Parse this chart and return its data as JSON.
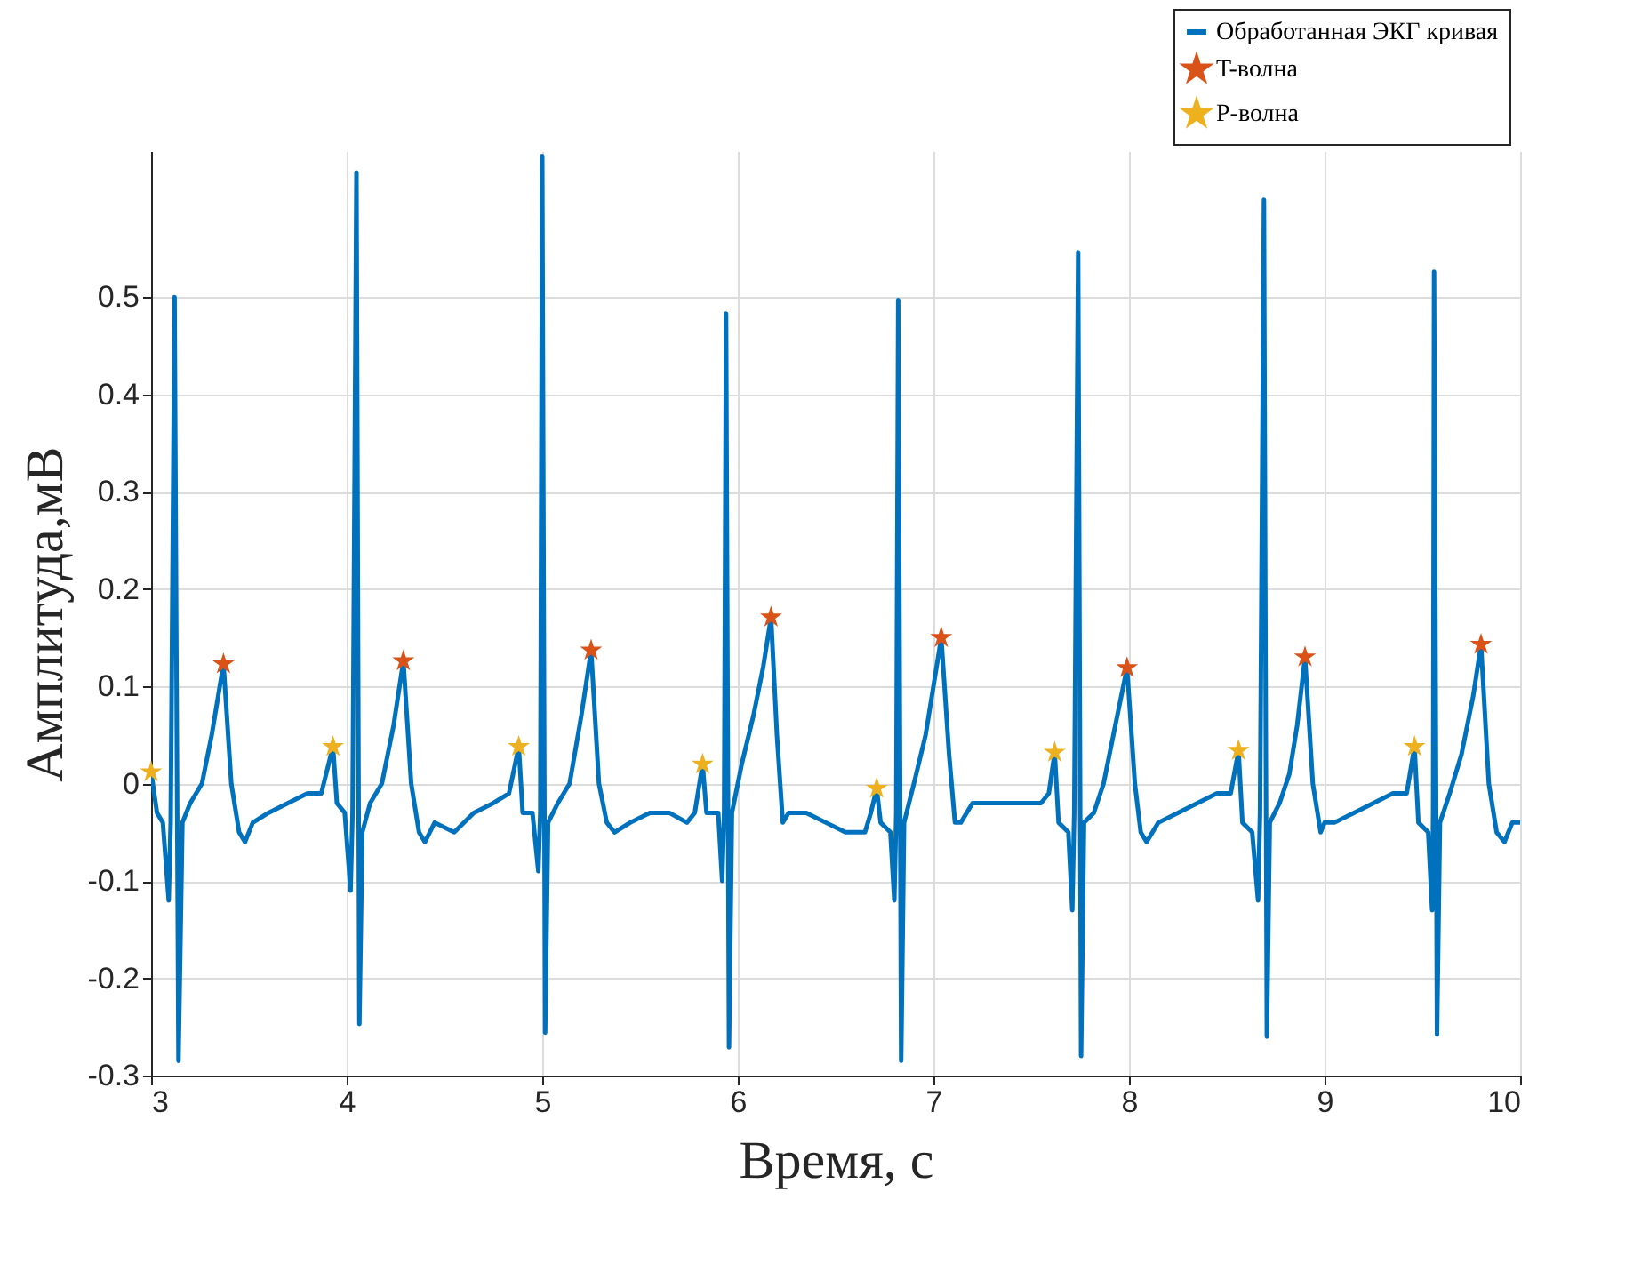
{
  "chart_data": {
    "type": "line",
    "xlabel": "Время, с",
    "ylabel": "Амплитуда,мВ",
    "xlim": [
      3,
      10
    ],
    "xticks": [
      3,
      4,
      5,
      6,
      7,
      8,
      9,
      10
    ],
    "ylim": [
      -0.3,
      0.65
    ],
    "yticks": [
      -0.3,
      -0.2,
      -0.1,
      0,
      0.1,
      0.2,
      0.3,
      0.4,
      0.5
    ],
    "grid": true,
    "legend": "top right",
    "series": [
      {
        "name": "Обработанная ЭКГ кривая",
        "color": "#0072bd",
        "marker": "none",
        "x": [
          3.0,
          3.03,
          3.06,
          3.09,
          3.1,
          3.12,
          3.14,
          3.16,
          3.2,
          3.26,
          3.31,
          3.37,
          3.41,
          3.45,
          3.48,
          3.52,
          3.6,
          3.7,
          3.8,
          3.87,
          3.93,
          3.95,
          3.99,
          4.02,
          4.03,
          4.05,
          4.065,
          4.08,
          4.12,
          4.18,
          4.24,
          4.29,
          4.33,
          4.37,
          4.4,
          4.45,
          4.55,
          4.65,
          4.75,
          4.83,
          4.88,
          4.9,
          4.95,
          4.98,
          4.99,
          5.0,
          5.015,
          5.03,
          5.08,
          5.14,
          5.2,
          5.25,
          5.29,
          5.33,
          5.37,
          5.45,
          5.55,
          5.65,
          5.74,
          5.78,
          5.82,
          5.84,
          5.9,
          5.92,
          5.93,
          5.94,
          5.955,
          5.97,
          6.02,
          6.08,
          6.13,
          6.17,
          6.2,
          6.23,
          6.26,
          6.35,
          6.45,
          6.55,
          6.65,
          6.68,
          6.71,
          6.73,
          6.78,
          6.8,
          6.81,
          6.82,
          6.835,
          6.85,
          6.9,
          6.96,
          7.04,
          7.08,
          7.11,
          7.14,
          7.2,
          7.3,
          7.45,
          7.55,
          7.59,
          7.62,
          7.64,
          7.69,
          7.71,
          7.72,
          7.74,
          7.755,
          7.77,
          7.82,
          7.87,
          7.93,
          7.99,
          8.03,
          8.06,
          8.09,
          8.15,
          8.25,
          8.35,
          8.45,
          8.52,
          8.56,
          8.58,
          8.63,
          8.66,
          8.67,
          8.69,
          8.705,
          8.72,
          8.77,
          8.82,
          8.86,
          8.9,
          8.94,
          8.98,
          9.0,
          9.05,
          9.15,
          9.25,
          9.35,
          9.42,
          9.46,
          9.48,
          9.53,
          9.55,
          9.555,
          9.56,
          9.575,
          9.59,
          9.64,
          9.7,
          9.76,
          9.8,
          9.84,
          9.88,
          9.92,
          9.96,
          10.0
        ],
        "values": [
          0.012,
          -0.03,
          -0.04,
          -0.12,
          -0.04,
          0.5,
          -0.285,
          -0.04,
          -0.02,
          0.0,
          0.05,
          0.123,
          0.0,
          -0.05,
          -0.06,
          -0.04,
          -0.03,
          -0.02,
          -0.01,
          -0.01,
          0.038,
          -0.02,
          -0.03,
          -0.11,
          -0.03,
          0.628,
          -0.247,
          -0.05,
          -0.02,
          0.0,
          0.06,
          0.126,
          0.0,
          -0.05,
          -0.06,
          -0.04,
          -0.05,
          -0.03,
          -0.02,
          -0.01,
          0.038,
          -0.03,
          -0.03,
          -0.09,
          -0.03,
          0.645,
          -0.256,
          -0.04,
          -0.02,
          0.0,
          0.07,
          0.137,
          0.0,
          -0.04,
          -0.05,
          -0.04,
          -0.03,
          -0.03,
          -0.04,
          -0.03,
          0.02,
          -0.03,
          -0.03,
          -0.1,
          -0.03,
          0.483,
          -0.271,
          -0.03,
          0.02,
          0.07,
          0.12,
          0.171,
          0.05,
          -0.04,
          -0.03,
          -0.03,
          -0.04,
          -0.05,
          -0.05,
          -0.03,
          -0.005,
          -0.04,
          -0.05,
          -0.12,
          -0.03,
          0.497,
          -0.285,
          -0.04,
          0.0,
          0.05,
          0.15,
          0.03,
          -0.04,
          -0.04,
          -0.02,
          -0.02,
          -0.02,
          -0.02,
          -0.01,
          0.032,
          -0.04,
          -0.05,
          -0.13,
          -0.03,
          0.546,
          -0.28,
          -0.04,
          -0.03,
          0.0,
          0.06,
          0.119,
          0.0,
          -0.05,
          -0.06,
          -0.04,
          -0.03,
          -0.02,
          -0.01,
          -0.01,
          0.034,
          -0.04,
          -0.05,
          -0.12,
          -0.03,
          0.6,
          -0.26,
          -0.04,
          -0.02,
          0.01,
          0.06,
          0.13,
          0.0,
          -0.05,
          -0.04,
          -0.04,
          -0.03,
          -0.02,
          -0.01,
          -0.01,
          0.038,
          -0.04,
          -0.05,
          -0.13,
          -0.03,
          0.526,
          -0.258,
          -0.04,
          -0.01,
          0.03,
          0.09,
          0.143,
          0.0,
          -0.05,
          -0.06,
          -0.04,
          -0.04
        ]
      },
      {
        "name": "T-волна",
        "type": "scatter",
        "color": "#d95319",
        "marker": "star",
        "x": [
          3.37,
          4.29,
          5.25,
          6.17,
          7.04,
          7.99,
          8.9,
          9.8
        ],
        "values": [
          0.123,
          0.126,
          0.137,
          0.171,
          0.15,
          0.119,
          0.13,
          0.143
        ]
      },
      {
        "name": "P-волна",
        "type": "scatter",
        "color": "#edb120",
        "marker": "star",
        "x": [
          3.0,
          3.93,
          4.88,
          5.82,
          6.71,
          7.62,
          8.56,
          9.46
        ],
        "values": [
          0.012,
          0.038,
          0.038,
          0.02,
          -0.005,
          0.032,
          0.034,
          0.038
        ]
      }
    ]
  }
}
